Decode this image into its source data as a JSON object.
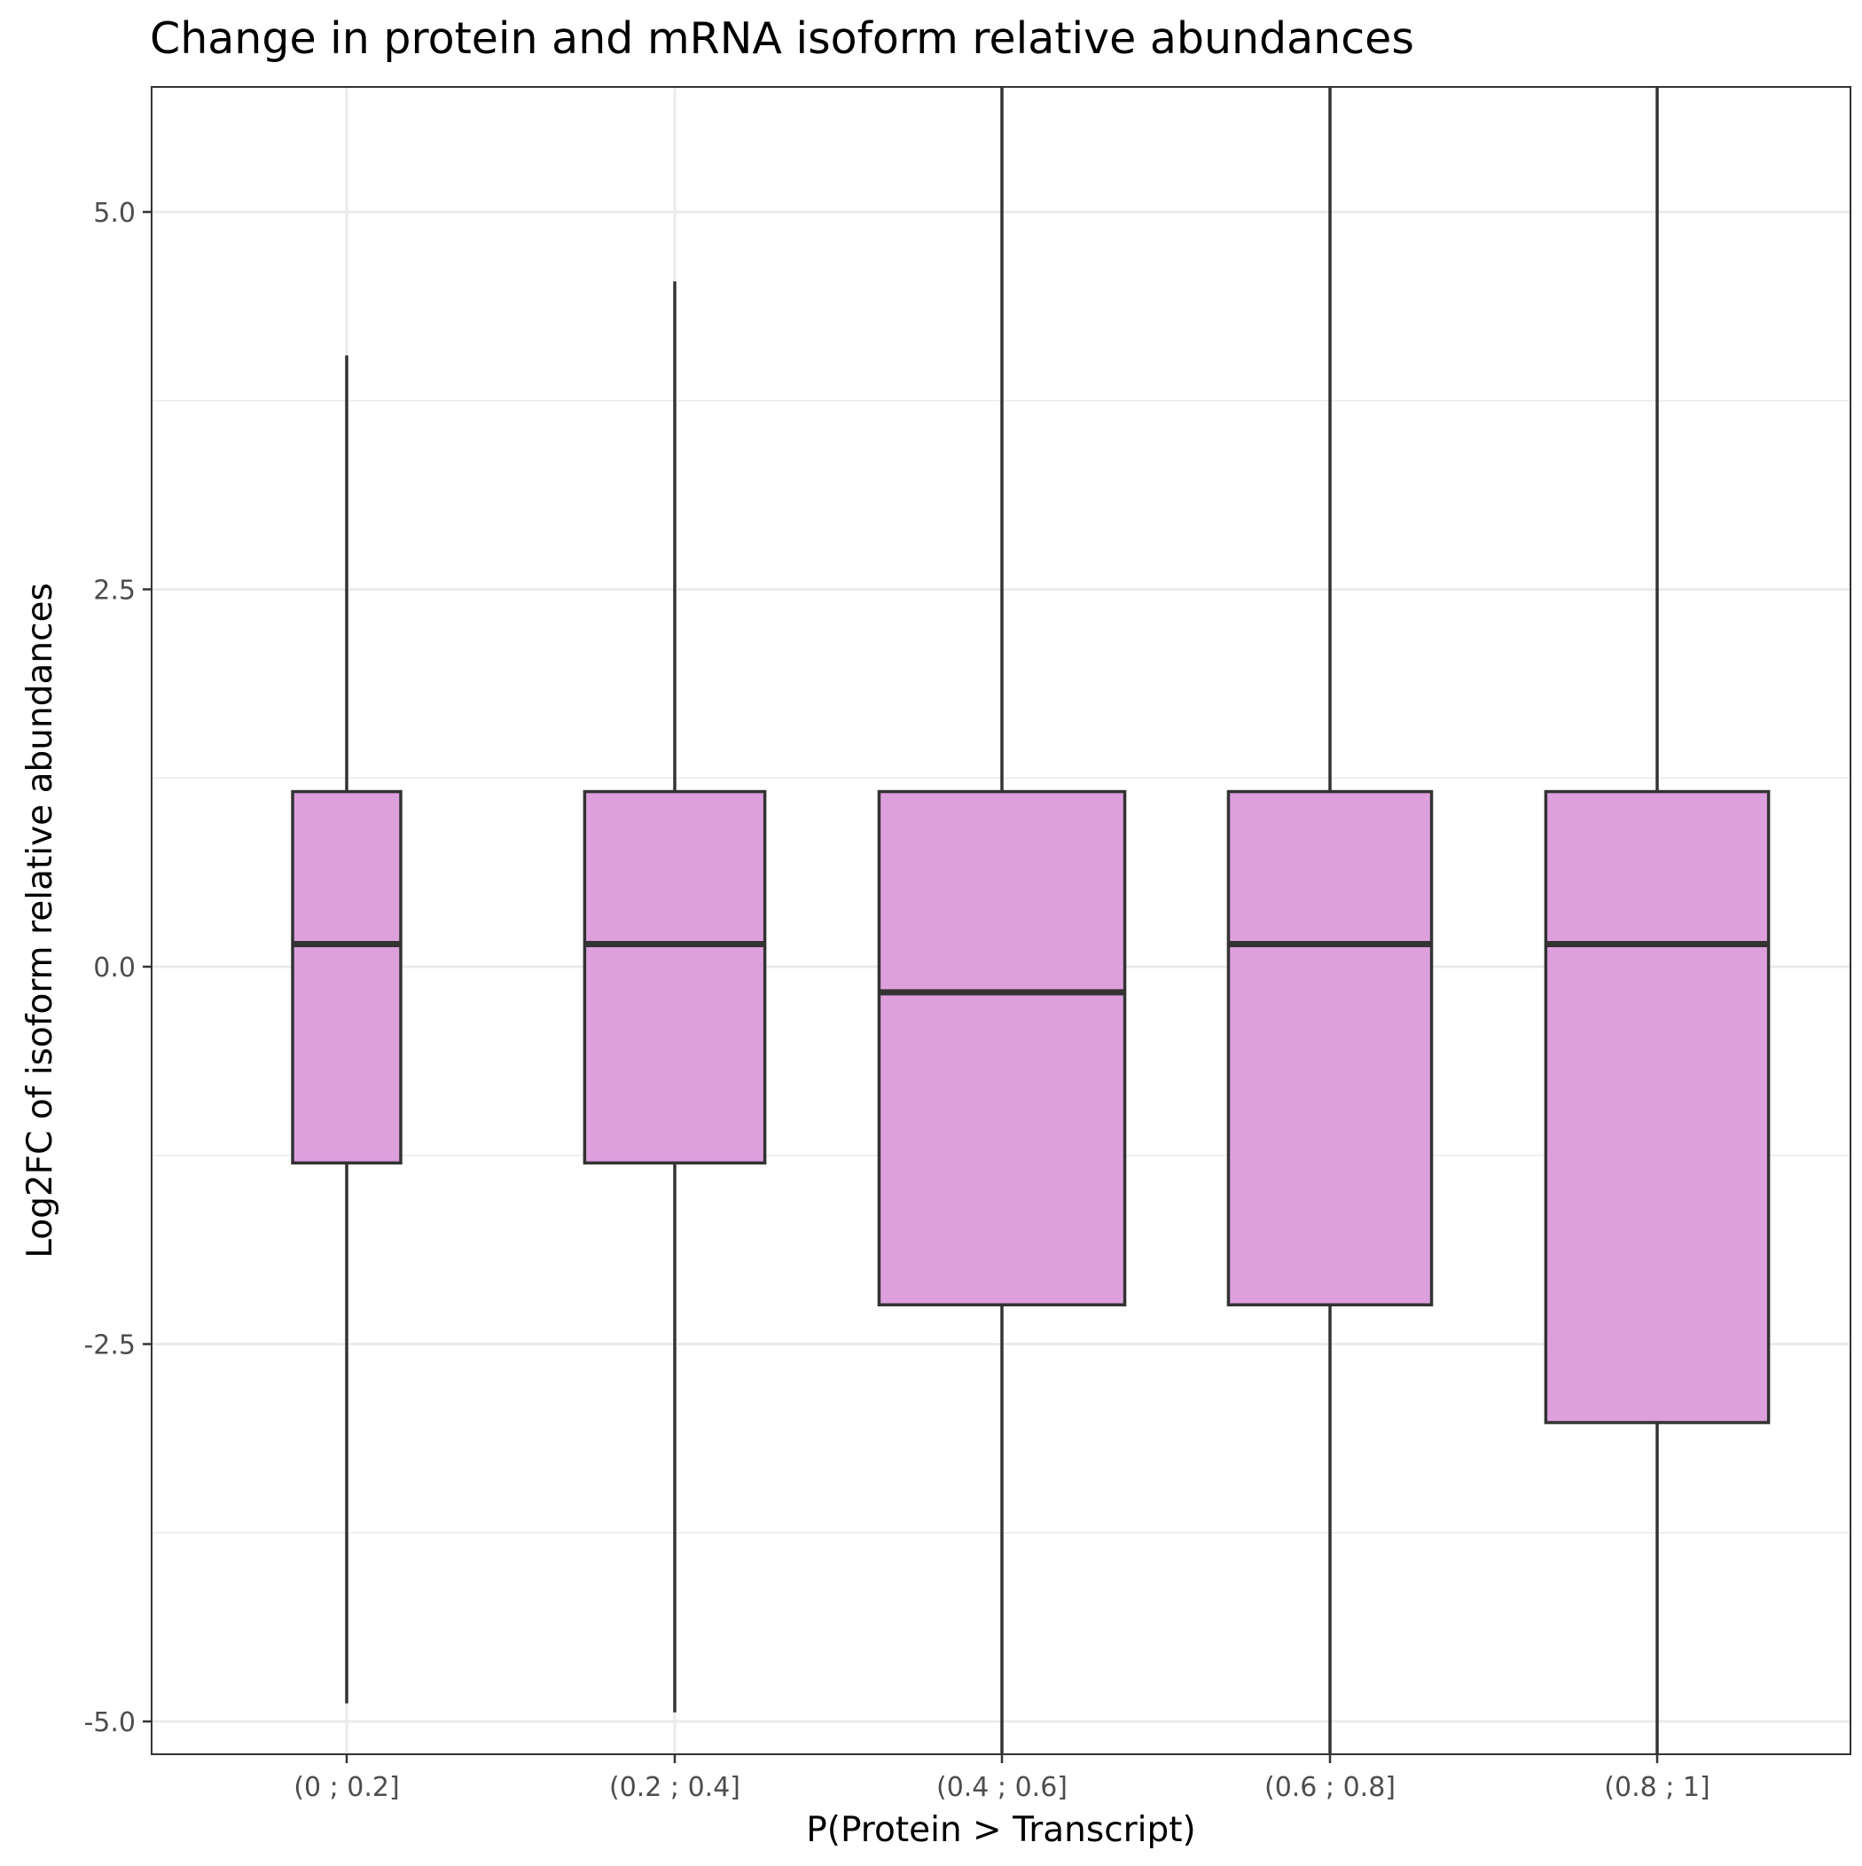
{
  "chart_data": {
    "type": "boxplot",
    "title": "Change in protein and mRNA isoform relative abundances",
    "xlabel": "P(Protein > Transcript)",
    "ylabel": "Log2FC of isoform relative abundances",
    "ylim": [
      -5.22,
      5.83
    ],
    "y_ticks": [
      -5.0,
      -2.5,
      0.0,
      2.5,
      5.0
    ],
    "y_tick_labels": [
      "-5.0",
      "-2.5",
      "0.0",
      "2.5",
      "5.0"
    ],
    "y_minor_ticks": [
      -3.75,
      -1.25,
      1.25,
      3.75
    ],
    "grid": true,
    "categories": [
      "(0 ; 0.2]",
      "(0.2 ; 0.4]",
      "(0.4 ; 0.6]",
      "(0.6 ; 0.8]",
      "(0.8 ; 1]"
    ],
    "box_width_fraction": [
      0.33,
      0.55,
      0.75,
      0.62,
      0.68
    ],
    "series": [
      {
        "boxes": [
          {
            "category": "(0 ; 0.2]",
            "whisker_low": -4.88,
            "q1": -1.3,
            "median": 0.15,
            "q3": 1.16,
            "whisker_high": 4.05
          },
          {
            "category": "(0.2 ; 0.4]",
            "whisker_low": -4.94,
            "q1": -1.3,
            "median": 0.15,
            "q3": 1.16,
            "whisker_high": 4.54
          },
          {
            "category": "(0.4 ; 0.6]",
            "whisker_low": -5.22,
            "q1": -2.24,
            "median": -0.17,
            "q3": 1.16,
            "whisker_high": 5.83
          },
          {
            "category": "(0.6 ; 0.8]",
            "whisker_low": -5.22,
            "q1": -2.24,
            "median": 0.15,
            "q3": 1.16,
            "whisker_high": 5.83
          },
          {
            "category": "(0.8 ; 1]",
            "whisker_low": -5.22,
            "q1": -3.02,
            "median": 0.15,
            "q3": 1.16,
            "whisker_high": 5.83
          }
        ]
      }
    ],
    "colors": {
      "box_fill": "#dda0dd",
      "box_stroke": "#333333",
      "grid": "#ebebeb",
      "panel_border": "#333333",
      "tick_label": "#4d4d4d"
    }
  }
}
